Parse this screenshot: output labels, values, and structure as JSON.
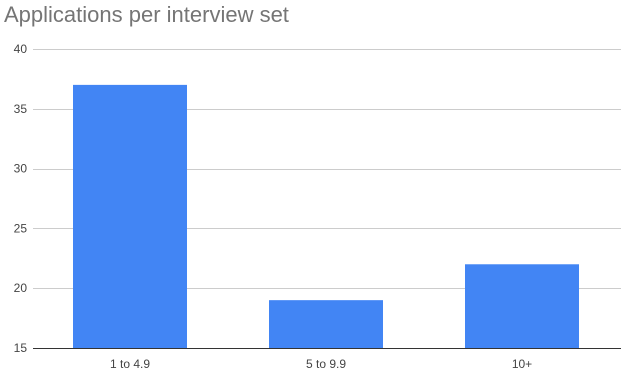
{
  "chart_data": {
    "type": "bar",
    "title": "Applications per interview set",
    "categories": [
      "1 to 4.9",
      "5 to 9.9",
      "10+"
    ],
    "values": [
      37,
      19,
      22
    ],
    "xlabel": "",
    "ylabel": "",
    "ylim": [
      15,
      40
    ],
    "yticks": [
      15,
      20,
      25,
      30,
      35,
      40
    ],
    "grid": true,
    "legend": "none",
    "bar_color": "#4285f4"
  }
}
